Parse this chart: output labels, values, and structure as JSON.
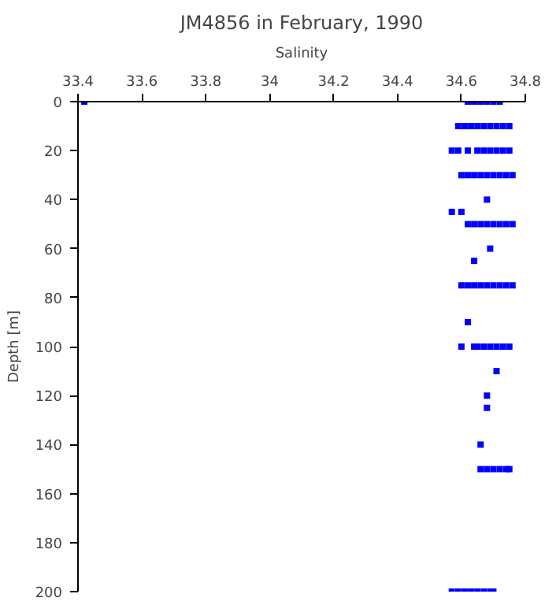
{
  "chart_data": {
    "type": "scatter",
    "title": "JM4856 in February, 1990",
    "xlabel": "Salinity",
    "ylabel": "Depth [m]",
    "xlim": [
      33.4,
      34.8
    ],
    "xticks": [
      33.4,
      33.6,
      33.8,
      34,
      34.2,
      34.4,
      34.6,
      34.8
    ],
    "ylim": [
      200,
      0
    ],
    "yticks": [
      0,
      20,
      40,
      60,
      80,
      100,
      120,
      140,
      160,
      180,
      200
    ],
    "grid": false,
    "marker": "square",
    "series": [
      {
        "color": "#0000ff",
        "x": [
          33.42,
          34.62,
          34.64,
          34.66,
          34.68,
          34.7,
          34.72,
          34.59,
          34.61,
          34.63,
          34.65,
          34.67,
          34.69,
          34.71,
          34.73,
          34.75,
          34.57,
          34.59,
          34.62,
          34.65,
          34.67,
          34.69,
          34.71,
          34.73,
          34.75,
          34.6,
          34.62,
          34.64,
          34.66,
          34.68,
          34.7,
          34.72,
          34.74,
          34.76,
          34.68,
          34.57,
          34.6,
          34.62,
          34.64,
          34.66,
          34.68,
          34.7,
          34.72,
          34.74,
          34.76,
          34.69,
          34.64,
          34.6,
          34.62,
          34.64,
          34.66,
          34.68,
          34.7,
          34.72,
          34.74,
          34.76,
          34.62,
          34.6,
          34.64,
          34.65,
          34.67,
          34.69,
          34.71,
          34.73,
          34.75,
          34.71,
          34.68,
          34.68,
          34.66,
          34.66,
          34.68,
          34.7,
          34.72,
          34.74,
          34.75,
          34.57,
          34.59,
          34.61,
          34.63,
          34.65,
          34.67,
          34.69,
          34.7
        ],
        "values": [
          0,
          0,
          0,
          0,
          0,
          0,
          0,
          10,
          10,
          10,
          10,
          10,
          10,
          10,
          10,
          10,
          20,
          20,
          20,
          20,
          20,
          20,
          20,
          20,
          20,
          30,
          30,
          30,
          30,
          30,
          30,
          30,
          30,
          30,
          40,
          45,
          45,
          50,
          50,
          50,
          50,
          50,
          50,
          50,
          50,
          60,
          65,
          75,
          75,
          75,
          75,
          75,
          75,
          75,
          75,
          75,
          90,
          100,
          100,
          100,
          100,
          100,
          100,
          100,
          100,
          110,
          120,
          125,
          140,
          150,
          150,
          150,
          150,
          150,
          150,
          200,
          200,
          200,
          200,
          200,
          200,
          200,
          200
        ]
      }
    ]
  }
}
